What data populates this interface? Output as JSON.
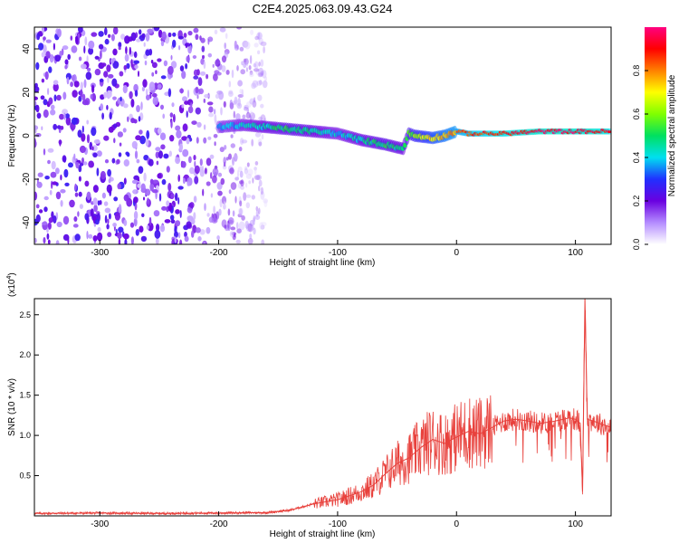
{
  "title": "C2E4.2025.063.09.43.G24",
  "chart_data": [
    {
      "type": "heatmap",
      "xlabel": "Height of straight line (km)",
      "ylabel": "Frequency (Hz)",
      "xlim": [
        -355,
        130
      ],
      "ylim": [
        -50,
        50
      ],
      "xticks": [
        -300,
        -200,
        -100,
        0,
        100
      ],
      "xtick_labels": [
        "-300",
        "-200",
        "-100",
        "0",
        "100"
      ],
      "yticks": [
        -40,
        -20,
        0,
        20,
        40
      ],
      "ytick_labels": [
        "-40",
        "-20",
        "0",
        "20",
        "40"
      ],
      "colorbar": {
        "label": "Normalized spectral amplitude",
        "range": [
          0,
          1
        ],
        "ticks": [
          0.0,
          0.2,
          0.4,
          0.6,
          0.8
        ],
        "tick_labels": [
          "0.0",
          "0.2",
          "0.4",
          "0.6",
          "0.8"
        ],
        "colors": [
          "#ffffff",
          "#b48cff",
          "#6a00e0",
          "#2030ff",
          "#00e0f0",
          "#00e060",
          "#80ff00",
          "#ffff00",
          "#ff8000",
          "#ff0000",
          "#ff0080"
        ]
      },
      "signal_trace": {
        "x": [
          -200,
          -180,
          -160,
          -140,
          -120,
          -100,
          -80,
          -60,
          -45,
          -40,
          -35,
          -20,
          -10,
          0,
          10,
          40,
          70,
          100,
          104,
          108,
          130
        ],
        "y": [
          4,
          5,
          4,
          3,
          2,
          1,
          -2,
          -4,
          -6,
          1,
          0,
          -1,
          0,
          2,
          1,
          1,
          2,
          2,
          2,
          2,
          2
        ],
        "intensity": [
          0.35,
          0.4,
          0.45,
          0.5,
          0.45,
          0.4,
          0.45,
          0.5,
          0.45,
          0.55,
          0.6,
          0.7,
          0.75,
          0.8,
          0.85,
          0.9,
          0.95,
          0.95,
          0.9,
          0.95,
          0.9
        ]
      },
      "noise_region": {
        "x": [
          -355,
          -170
        ],
        "intensity": 0.15
      }
    },
    {
      "type": "line",
      "xlabel": "Height of straight line (km)",
      "ylabel": "SNR (10 * v/v)",
      "y_multiplier": "(x10",
      "y_multiplier_exp": "4",
      "xlim": [
        -355,
        130
      ],
      "ylim": [
        0,
        27000
      ],
      "xticks": [
        -300,
        -200,
        -100,
        0,
        100
      ],
      "xtick_labels": [
        "-300",
        "-200",
        "-100",
        "0",
        "100"
      ],
      "yticks": [
        5000,
        10000,
        15000,
        20000,
        25000
      ],
      "ytick_labels": [
        "0.5",
        "1.0",
        "1.5",
        "2.0",
        "2.5"
      ],
      "color": "#e8413c",
      "series": [
        {
          "x": [
            -355,
            -300,
            -250,
            -200,
            -160,
            -140,
            -120,
            -100,
            -90,
            -80,
            -70,
            -60,
            -50,
            -40,
            -30,
            -20,
            -10,
            0,
            10,
            20,
            30,
            40,
            50,
            60,
            70,
            80,
            90,
            95,
            100,
            104,
            106,
            108,
            110,
            115,
            120,
            130
          ],
          "y": [
            300,
            350,
            300,
            350,
            400,
            700,
            1500,
            2000,
            2500,
            3000,
            3800,
            5200,
            6500,
            7200,
            8500,
            9500,
            9000,
            9800,
            10500,
            10200,
            11000,
            11800,
            12000,
            11800,
            11500,
            11700,
            12000,
            12200,
            12000,
            11500,
            3000,
            27000,
            12000,
            11800,
            11500,
            11000
          ]
        }
      ]
    }
  ]
}
